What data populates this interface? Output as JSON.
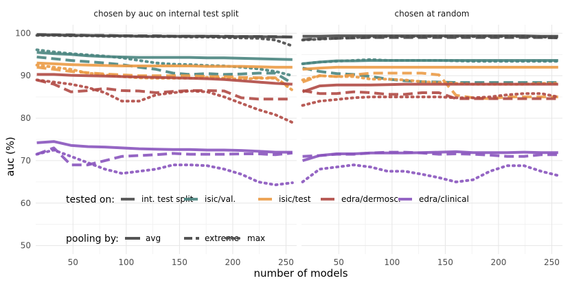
{
  "chart_data": {
    "type": "line",
    "ylabel": "auc (%)",
    "xlabel": "number of models",
    "xlim": [
      15,
      260
    ],
    "ylim": [
      48,
      102
    ],
    "xticks": [
      50,
      100,
      150,
      200,
      250
    ],
    "yticks": [
      50,
      60,
      70,
      80,
      90,
      100
    ],
    "grid": true,
    "x": [
      16,
      32,
      48,
      64,
      80,
      96,
      112,
      128,
      144,
      160,
      176,
      192,
      208,
      224,
      240,
      256
    ],
    "colors": {
      "int. test split": "#4a4a4a",
      "isic/val.": "#4a8580",
      "isic/test": "#eb9b46",
      "edra/dermosc.": "#b04a45",
      "edra/clinical": "#8a55be"
    },
    "legend_tested": {
      "title": "tested on:",
      "items": [
        "int. test split",
        "isic/val.",
        "isic/test",
        "edra/dermosc.",
        "edra/clinical"
      ]
    },
    "legend_pooling": {
      "title": "pooling by:",
      "items": [
        "avg",
        "extreme",
        "max"
      ]
    },
    "panels": [
      {
        "title": "chosen by auc on internal test split",
        "series": [
          {
            "group": "int. test split",
            "pooling": "avg",
            "values": [
              99.6,
              99.6,
              99.5,
              99.5,
              99.4,
              99.4,
              99.3,
              99.3,
              99.3,
              99.3,
              99.3,
              99.2,
              99.2,
              99.2,
              99.1,
              99.1
            ]
          },
          {
            "group": "int. test split",
            "pooling": "extreme",
            "values": [
              99.7,
              99.6,
              99.6,
              99.5,
              99.5,
              99.4,
              99.4,
              99.4,
              99.3,
              99.3,
              99.3,
              99.3,
              99.2,
              99.2,
              99.2,
              99.1
            ]
          },
          {
            "group": "int. test split",
            "pooling": "max",
            "values": [
              99.5,
              99.5,
              99.4,
              99.4,
              99.3,
              99.3,
              99.3,
              99.2,
              99.2,
              99.1,
              99.1,
              99.0,
              98.9,
              98.8,
              98.4,
              97.0
            ]
          },
          {
            "group": "isic/val.",
            "pooling": "avg",
            "values": [
              95.5,
              95.2,
              95.0,
              94.7,
              94.5,
              94.4,
              94.3,
              94.3,
              94.3,
              94.3,
              94.2,
              94.2,
              94.1,
              94.0,
              93.9,
              93.8
            ]
          },
          {
            "group": "isic/val.",
            "pooling": "extreme",
            "values": [
              94.4,
              94.0,
              93.6,
              93.3,
              93.0,
              92.6,
              92.0,
              91.5,
              90.6,
              90.3,
              90.5,
              90.3,
              90.4,
              90.6,
              90.6,
              88.2
            ]
          },
          {
            "group": "isic/val.",
            "pooling": "max",
            "values": [
              96.1,
              95.6,
              95.2,
              94.9,
              94.6,
              94.2,
              93.6,
              93.0,
              92.7,
              92.6,
              92.4,
              92.3,
              92.0,
              91.6,
              91.0,
              90.0
            ]
          },
          {
            "group": "isic/test",
            "pooling": "avg",
            "values": [
              93.0,
              92.8,
              92.6,
              92.5,
              92.4,
              92.3,
              92.3,
              92.3,
              92.3,
              92.3,
              92.2,
              92.2,
              92.2,
              92.1,
              92.0,
              92.0
            ]
          },
          {
            "group": "isic/test",
            "pooling": "extreme",
            "values": [
              92.0,
              91.5,
              91.0,
              90.7,
              90.4,
              90.2,
              90.0,
              90.0,
              90.0,
              90.0,
              89.8,
              89.8,
              89.6,
              89.5,
              89.5,
              86.8
            ]
          },
          {
            "group": "isic/test",
            "pooling": "max",
            "values": [
              92.5,
              92.0,
              91.5,
              90.6,
              90.2,
              89.8,
              89.5,
              89.4,
              89.4,
              89.4,
              89.6,
              89.4,
              89.2,
              89.4,
              89.4,
              86.6
            ]
          },
          {
            "group": "edra/dermosc.",
            "pooling": "avg",
            "values": [
              90.3,
              90.3,
              90.1,
              90.0,
              89.9,
              89.8,
              89.7,
              89.6,
              89.5,
              89.4,
              89.3,
              89.1,
              88.8,
              88.5,
              88.2,
              88.0
            ]
          },
          {
            "group": "edra/dermosc.",
            "pooling": "extreme",
            "values": [
              89.0,
              88.0,
              86.2,
              86.5,
              87.0,
              86.5,
              86.4,
              86.0,
              86.3,
              86.5,
              86.5,
              86.4,
              84.8,
              84.5,
              84.5,
              84.5
            ]
          },
          {
            "group": "edra/dermosc.",
            "pooling": "max",
            "values": [
              89.0,
              88.5,
              88.0,
              87.2,
              86.0,
              84.0,
              84.0,
              85.5,
              86.0,
              86.4,
              86.2,
              85.0,
              83.5,
              82.0,
              80.8,
              79.0
            ]
          },
          {
            "group": "edra/clinical",
            "pooling": "avg",
            "values": [
              74.2,
              74.5,
              73.6,
              73.3,
              73.2,
              73.0,
              72.8,
              72.7,
              72.6,
              72.6,
              72.5,
              72.5,
              72.4,
              72.2,
              72.0,
              72.0
            ]
          },
          {
            "group": "edra/clinical",
            "pooling": "extreme",
            "values": [
              71.5,
              73.0,
              69.0,
              69.0,
              70.0,
              71.0,
              71.2,
              71.4,
              71.7,
              71.5,
              71.5,
              71.5,
              71.6,
              71.6,
              71.4,
              71.8
            ]
          },
          {
            "group": "edra/clinical",
            "pooling": "max",
            "values": [
              71.5,
              72.5,
              71.0,
              69.5,
              68.0,
              67.0,
              67.5,
              68.0,
              69.0,
              69.0,
              68.8,
              68.0,
              66.8,
              65.0,
              64.3,
              64.8
            ]
          }
        ]
      },
      {
        "title": "chosen at random",
        "series": [
          {
            "group": "int. test split",
            "pooling": "avg",
            "values": [
              99.3,
              99.3,
              99.4,
              99.4,
              99.4,
              99.4,
              99.4,
              99.4,
              99.4,
              99.4,
              99.4,
              99.4,
              99.4,
              99.4,
              99.3,
              99.3
            ]
          },
          {
            "group": "int. test split",
            "pooling": "extreme",
            "values": [
              98.5,
              98.7,
              98.8,
              98.9,
              99.0,
              99.0,
              99.0,
              99.0,
              99.0,
              99.0,
              99.0,
              99.0,
              99.0,
              99.0,
              99.0,
              98.9
            ]
          },
          {
            "group": "int. test split",
            "pooling": "max",
            "values": [
              98.4,
              98.6,
              98.8,
              99.0,
              99.1,
              99.2,
              99.2,
              99.2,
              99.2,
              99.2,
              99.2,
              99.2,
              99.2,
              99.2,
              99.1,
              99.0
            ]
          },
          {
            "group": "isic/val.",
            "pooling": "avg",
            "values": [
              92.8,
              93.2,
              93.5,
              93.5,
              93.6,
              93.6,
              93.6,
              93.6,
              93.6,
              93.6,
              93.6,
              93.6,
              93.6,
              93.6,
              93.6,
              93.6
            ]
          },
          {
            "group": "isic/val.",
            "pooling": "extreme",
            "values": [
              91.8,
              91.0,
              90.5,
              90.3,
              89.8,
              89.2,
              88.8,
              88.6,
              88.5,
              88.4,
              88.4,
              88.4,
              88.4,
              88.4,
              88.4,
              88.4
            ]
          },
          {
            "group": "isic/val.",
            "pooling": "max",
            "values": [
              92.8,
              93.2,
              93.4,
              93.6,
              93.8,
              93.6,
              93.6,
              93.6,
              93.6,
              93.5,
              93.4,
              93.4,
              93.4,
              93.4,
              93.4,
              93.4
            ]
          },
          {
            "group": "isic/test",
            "pooling": "avg",
            "values": [
              91.5,
              91.8,
              92.0,
              92.0,
              92.0,
              92.0,
              92.0,
              92.0,
              92.0,
              92.0,
              92.0,
              92.0,
              92.0,
              92.0,
              92.0,
              92.0
            ]
          },
          {
            "group": "isic/test",
            "pooling": "extreme",
            "values": [
              88.5,
              90.0,
              89.8,
              90.2,
              90.6,
              90.6,
              90.6,
              90.6,
              90.2,
              85.4,
              84.8,
              84.6,
              85.0,
              85.0,
              85.0,
              85.0
            ]
          },
          {
            "group": "isic/test",
            "pooling": "max",
            "values": [
              89.0,
              90.0,
              89.8,
              89.8,
              89.2,
              89.2,
              89.0,
              88.6,
              88.4,
              88.2,
              88.0,
              88.0,
              88.0,
              88.0,
              88.2,
              88.2
            ]
          },
          {
            "group": "edra/dermosc.",
            "pooling": "avg",
            "values": [
              86.2,
              87.6,
              87.8,
              87.8,
              87.8,
              87.9,
              88.0,
              88.0,
              88.0,
              88.0,
              88.0,
              88.0,
              88.0,
              88.0,
              88.0,
              88.0
            ]
          },
          {
            "group": "edra/dermosc.",
            "pooling": "extreme",
            "values": [
              86.5,
              85.8,
              85.8,
              86.2,
              86.0,
              85.6,
              85.6,
              86.0,
              86.0,
              84.6,
              84.6,
              84.6,
              84.6,
              84.6,
              84.6,
              84.6
            ]
          },
          {
            "group": "edra/dermosc.",
            "pooling": "max",
            "values": [
              83.0,
              84.0,
              84.4,
              84.8,
              85.0,
              85.0,
              85.0,
              85.0,
              85.0,
              84.8,
              84.8,
              85.0,
              85.5,
              85.8,
              85.8,
              85.0
            ]
          },
          {
            "group": "edra/clinical",
            "pooling": "avg",
            "values": [
              70.0,
              71.2,
              71.6,
              71.6,
              71.8,
              71.8,
              71.8,
              71.9,
              72.0,
              72.1,
              71.9,
              71.9,
              71.9,
              72.0,
              71.9,
              71.9
            ]
          },
          {
            "group": "edra/clinical",
            "pooling": "extreme",
            "values": [
              71.0,
              71.2,
              71.5,
              71.5,
              71.8,
              72.0,
              72.0,
              71.8,
              71.5,
              71.6,
              71.5,
              71.3,
              71.0,
              71.0,
              71.4,
              71.4
            ]
          },
          {
            "group": "edra/clinical",
            "pooling": "max",
            "values": [
              65.0,
              68.0,
              68.5,
              69.0,
              68.5,
              67.5,
              67.5,
              66.8,
              66.0,
              65.0,
              65.5,
              67.5,
              68.8,
              68.8,
              67.5,
              66.5
            ]
          }
        ]
      }
    ]
  }
}
